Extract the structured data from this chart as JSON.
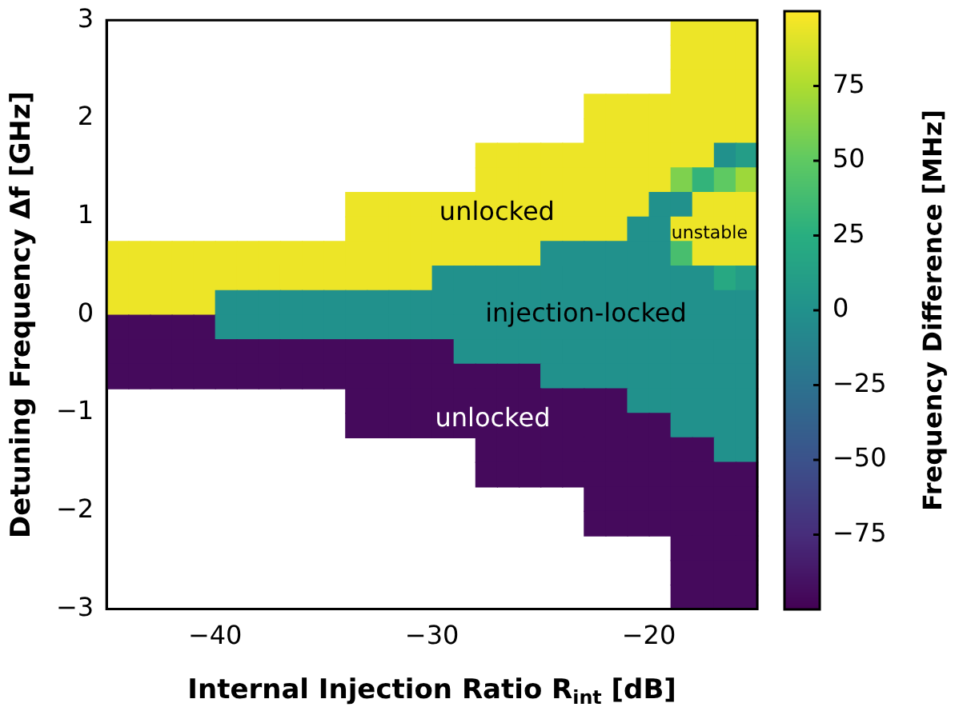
{
  "chart_data": {
    "type": "heatmap",
    "xlabel": "Internal Injection Ratio R$_{int}$ [dB]",
    "ylabel": "Detuning Frequency Δf [GHz]",
    "clabel": "Frequency Difference [MHz]",
    "x": [
      -44.5,
      -43.5,
      -42.5,
      -41.5,
      -40.5,
      -39.5,
      -38.5,
      -37.5,
      -36.5,
      -35.5,
      -34.5,
      -33.5,
      -32.5,
      -31.5,
      -30.5,
      -29.5,
      -28.5,
      -27.5,
      -26.5,
      -25.5,
      -24.5,
      -23.5,
      -22.5,
      -21.5,
      -20.5,
      -19.5,
      -18.5,
      -17.5,
      -16.5,
      -15.5
    ],
    "y": [
      2.875,
      2.625,
      2.375,
      2.125,
      1.875,
      1.625,
      1.375,
      1.125,
      0.875,
      0.625,
      0.375,
      0.125,
      -0.125,
      -0.375,
      -0.625,
      -0.875,
      -1.125,
      -1.375,
      -1.625,
      -1.875,
      -2.125,
      -2.375,
      -2.625,
      -2.875
    ],
    "xlim": [
      -45,
      -15
    ],
    "xticks": [
      -40,
      -30,
      -20
    ],
    "ylim": [
      -3,
      3
    ],
    "yticks": [
      -3,
      -2,
      -1,
      0,
      1,
      2,
      3
    ],
    "clim": [
      -100,
      100
    ],
    "cticks": [
      -75,
      -50,
      -25,
      0,
      25,
      50,
      75
    ],
    "cells": [
      [
        null,
        null,
        null,
        null,
        null,
        null,
        null,
        null,
        null,
        null,
        null,
        null,
        null,
        null,
        null,
        null,
        null,
        null,
        null,
        null,
        null,
        null,
        null,
        null,
        null,
        null,
        95,
        95,
        95,
        95
      ],
      [
        null,
        null,
        null,
        null,
        null,
        null,
        null,
        null,
        null,
        null,
        null,
        null,
        null,
        null,
        null,
        null,
        null,
        null,
        null,
        null,
        null,
        null,
        null,
        null,
        null,
        null,
        95,
        95,
        95,
        95
      ],
      [
        null,
        null,
        null,
        null,
        null,
        null,
        null,
        null,
        null,
        null,
        null,
        null,
        null,
        null,
        null,
        null,
        null,
        null,
        null,
        null,
        null,
        null,
        null,
        null,
        null,
        null,
        95,
        95,
        95,
        95
      ],
      [
        null,
        null,
        null,
        null,
        null,
        null,
        null,
        null,
        null,
        null,
        null,
        null,
        null,
        null,
        null,
        null,
        null,
        null,
        null,
        null,
        null,
        null,
        95,
        95,
        95,
        95,
        95,
        95,
        95,
        95
      ],
      [
        null,
        null,
        null,
        null,
        null,
        null,
        null,
        null,
        null,
        null,
        null,
        null,
        null,
        null,
        null,
        null,
        null,
        null,
        null,
        null,
        null,
        null,
        95,
        95,
        95,
        95,
        95,
        95,
        95,
        95
      ],
      [
        null,
        null,
        null,
        null,
        null,
        null,
        null,
        null,
        null,
        null,
        null,
        null,
        null,
        null,
        null,
        null,
        null,
        95,
        95,
        95,
        95,
        95,
        95,
        95,
        95,
        95,
        95,
        95,
        0,
        10
      ],
      [
        null,
        null,
        null,
        null,
        null,
        null,
        null,
        null,
        null,
        null,
        null,
        null,
        null,
        null,
        null,
        null,
        null,
        95,
        95,
        95,
        95,
        95,
        95,
        95,
        95,
        95,
        60,
        30,
        50,
        70
      ],
      [
        null,
        null,
        null,
        null,
        null,
        null,
        null,
        null,
        null,
        null,
        null,
        95,
        95,
        95,
        95,
        95,
        95,
        95,
        95,
        95,
        95,
        95,
        95,
        95,
        95,
        0,
        0,
        95,
        95,
        95
      ],
      [
        null,
        null,
        null,
        null,
        null,
        null,
        null,
        null,
        null,
        null,
        null,
        95,
        95,
        95,
        95,
        95,
        95,
        95,
        95,
        95,
        95,
        95,
        95,
        95,
        0,
        0,
        95,
        95,
        95,
        95
      ],
      [
        95,
        95,
        95,
        95,
        95,
        95,
        95,
        95,
        95,
        95,
        95,
        95,
        95,
        95,
        95,
        95,
        95,
        95,
        95,
        95,
        0,
        0,
        0,
        0,
        0,
        0,
        40,
        95,
        95,
        95
      ],
      [
        95,
        95,
        95,
        95,
        95,
        95,
        95,
        95,
        95,
        95,
        95,
        95,
        95,
        95,
        95,
        0,
        0,
        0,
        0,
        0,
        0,
        0,
        0,
        0,
        0,
        0,
        0,
        0,
        20,
        10
      ],
      [
        95,
        95,
        95,
        95,
        95,
        0,
        0,
        0,
        0,
        0,
        0,
        0,
        0,
        0,
        0,
        0,
        0,
        0,
        0,
        0,
        0,
        0,
        0,
        0,
        0,
        0,
        0,
        0,
        0,
        0
      ],
      [
        -95,
        -95,
        -95,
        -95,
        -95,
        0,
        0,
        0,
        0,
        0,
        0,
        0,
        0,
        0,
        0,
        0,
        0,
        0,
        0,
        0,
        0,
        0,
        0,
        0,
        0,
        0,
        0,
        0,
        0,
        0
      ],
      [
        -95,
        -95,
        -95,
        -95,
        -95,
        -95,
        -95,
        -95,
        -95,
        -95,
        -95,
        -95,
        -95,
        -95,
        -95,
        -95,
        0,
        0,
        0,
        0,
        0,
        0,
        0,
        0,
        0,
        0,
        0,
        0,
        0,
        0
      ],
      [
        -95,
        -95,
        -95,
        -95,
        -95,
        -95,
        -95,
        -95,
        -95,
        -95,
        -95,
        -95,
        -95,
        -95,
        -95,
        -95,
        -95,
        -95,
        -95,
        -95,
        0,
        0,
        0,
        0,
        0,
        0,
        0,
        0,
        0,
        0
      ],
      [
        null,
        null,
        null,
        null,
        null,
        null,
        null,
        null,
        null,
        null,
        null,
        -95,
        -95,
        -95,
        -95,
        -95,
        -95,
        -95,
        -95,
        -95,
        -95,
        -95,
        -95,
        -95,
        0,
        0,
        0,
        0,
        0,
        0
      ],
      [
        null,
        null,
        null,
        null,
        null,
        null,
        null,
        null,
        null,
        null,
        null,
        -95,
        -95,
        -95,
        -95,
        -95,
        -95,
        -95,
        -95,
        -95,
        -95,
        -95,
        -95,
        -95,
        -95,
        -95,
        0,
        0,
        0,
        0
      ],
      [
        null,
        null,
        null,
        null,
        null,
        null,
        null,
        null,
        null,
        null,
        null,
        null,
        null,
        null,
        null,
        null,
        null,
        -95,
        -95,
        -95,
        -95,
        -95,
        -95,
        -95,
        -95,
        -95,
        -95,
        -95,
        0,
        0
      ],
      [
        null,
        null,
        null,
        null,
        null,
        null,
        null,
        null,
        null,
        null,
        null,
        null,
        null,
        null,
        null,
        null,
        null,
        -95,
        -95,
        -95,
        -95,
        -95,
        -95,
        -95,
        -95,
        -95,
        -95,
        -95,
        -95,
        -95
      ],
      [
        null,
        null,
        null,
        null,
        null,
        null,
        null,
        null,
        null,
        null,
        null,
        null,
        null,
        null,
        null,
        null,
        null,
        null,
        null,
        null,
        null,
        null,
        -95,
        -95,
        -95,
        -95,
        -95,
        -95,
        -95,
        -95
      ],
      [
        null,
        null,
        null,
        null,
        null,
        null,
        null,
        null,
        null,
        null,
        null,
        null,
        null,
        null,
        null,
        null,
        null,
        null,
        null,
        null,
        null,
        null,
        -95,
        -95,
        -95,
        -95,
        -95,
        -95,
        -95,
        -95
      ],
      [
        null,
        null,
        null,
        null,
        null,
        null,
        null,
        null,
        null,
        null,
        null,
        null,
        null,
        null,
        null,
        null,
        null,
        null,
        null,
        null,
        null,
        null,
        null,
        null,
        null,
        null,
        -95,
        -95,
        -95,
        -95
      ],
      [
        null,
        null,
        null,
        null,
        null,
        null,
        null,
        null,
        null,
        null,
        null,
        null,
        null,
        null,
        null,
        null,
        null,
        null,
        null,
        null,
        null,
        null,
        null,
        null,
        null,
        null,
        -95,
        -95,
        -95,
        -95
      ],
      [
        null,
        null,
        null,
        null,
        null,
        null,
        null,
        null,
        null,
        null,
        null,
        null,
        null,
        null,
        null,
        null,
        null,
        null,
        null,
        null,
        null,
        null,
        null,
        null,
        null,
        null,
        -95,
        -95,
        -95,
        -95
      ]
    ],
    "annotations": [
      "unlocked",
      "injection-locked",
      "unlocked",
      "unstable"
    ]
  }
}
